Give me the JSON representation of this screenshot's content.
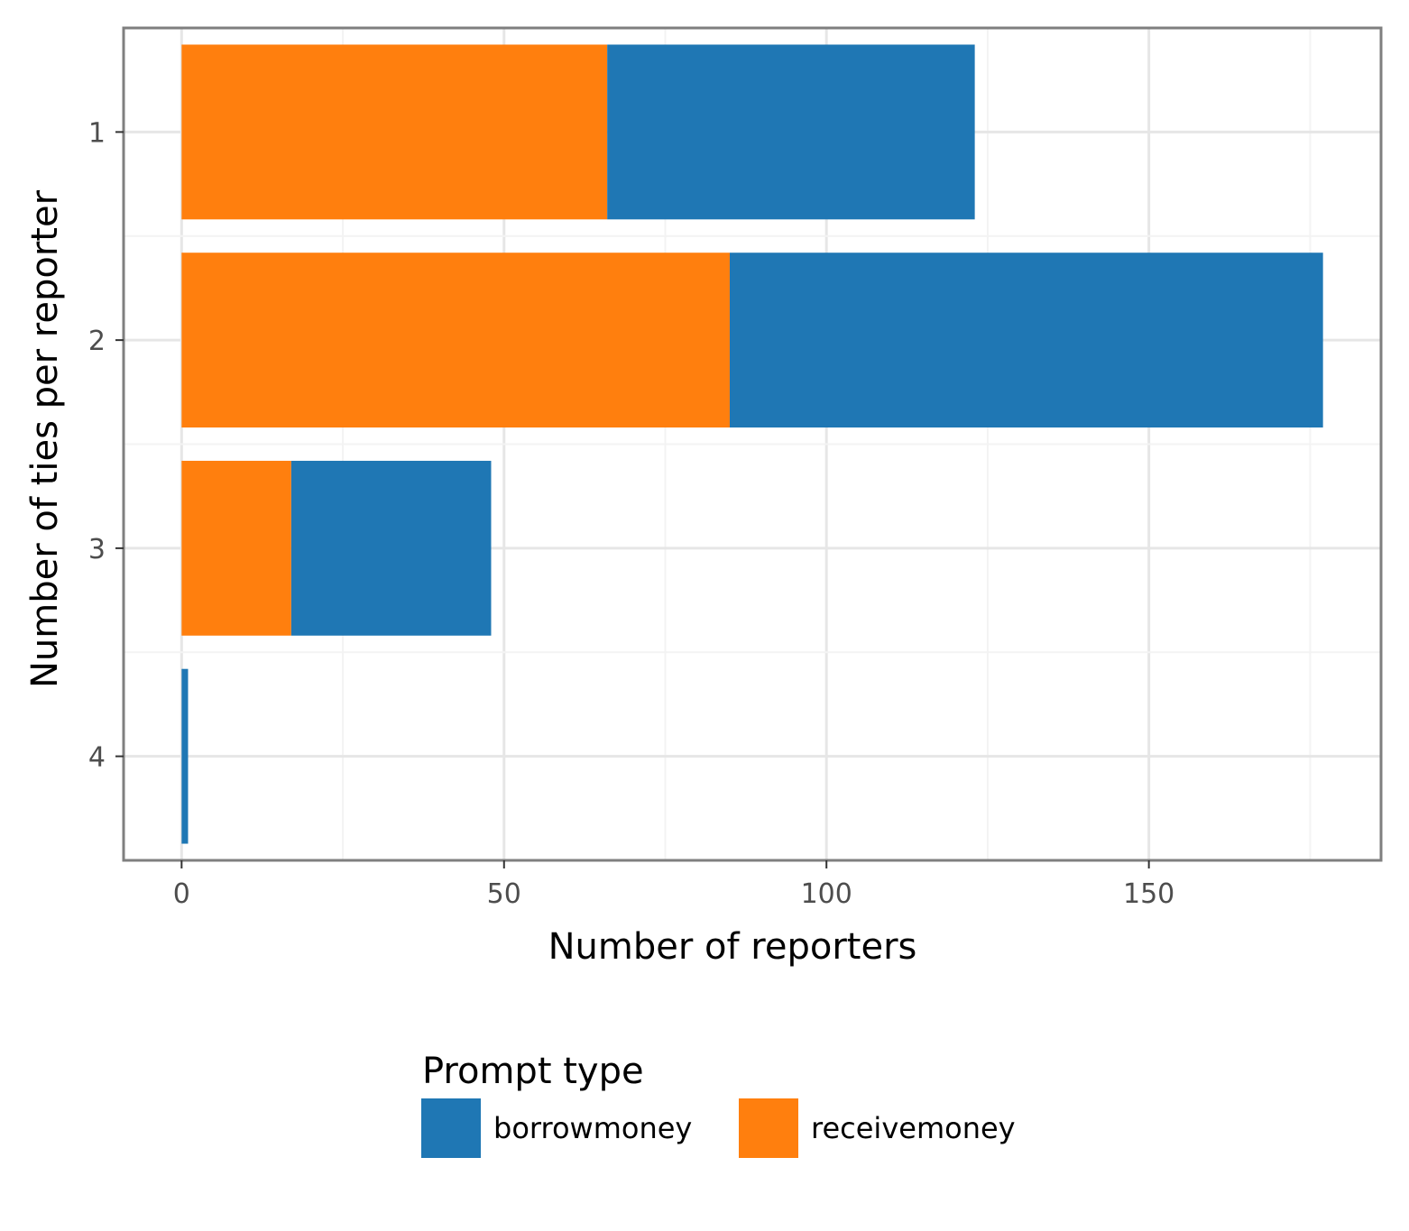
{
  "chart_data": {
    "type": "bar",
    "orientation": "horizontal",
    "stacked": true,
    "categories": [
      "1",
      "2",
      "3",
      "4"
    ],
    "series": [
      {
        "name": "receivemoney",
        "color": "#ff7f0e",
        "values": [
          66,
          85,
          17,
          0
        ]
      },
      {
        "name": "borrowmoney",
        "color": "#1f77b4",
        "values": [
          57,
          92,
          31,
          1
        ]
      }
    ],
    "xlabel": "Number of reporters",
    "ylabel": "Number of ties per reporter",
    "xlim": [
      -9,
      186
    ],
    "xticks": [
      0,
      50,
      100,
      150
    ],
    "grid": true,
    "legend": {
      "title": "Prompt type",
      "placement": "bottom",
      "items": [
        "borrowmoney",
        "receivemoney"
      ]
    }
  }
}
